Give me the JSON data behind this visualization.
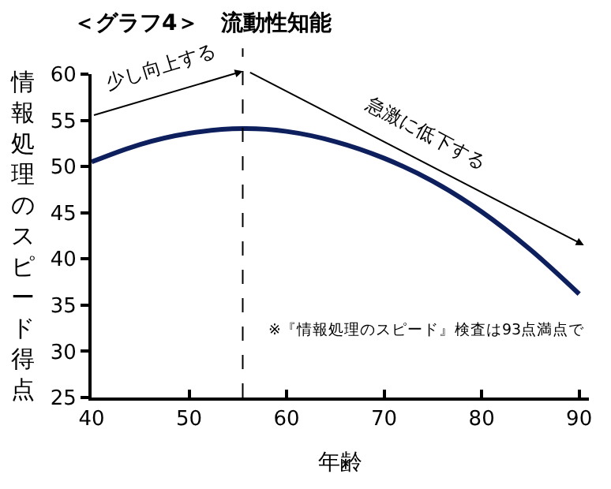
{
  "chart_data": {
    "type": "line",
    "title": "＜グラフ4＞　流動性知能",
    "xlabel": "年齢",
    "ylabel": "情報処理のスピード得点",
    "x": [
      40,
      45,
      50,
      55.5,
      60,
      65,
      70,
      75,
      80,
      85,
      90
    ],
    "series": [
      {
        "color": "#0d1f5c",
        "values": [
          50.5,
          52.4,
          53.6,
          54.1,
          53.8,
          52.7,
          50.9,
          48.4,
          45.1,
          41.0,
          36.2
        ]
      }
    ],
    "xlim": [
      40,
      91
    ],
    "ylim": [
      25,
      60
    ],
    "xticks": [
      40,
      50,
      60,
      70,
      80,
      90
    ],
    "yticks": [
      25,
      30,
      35,
      40,
      45,
      50,
      55,
      60
    ],
    "ref_lines": [
      {
        "axis": "x",
        "value": 55.5,
        "color": "#000000",
        "line_style": "dashed"
      }
    ],
    "annotations": [
      "少し向上する",
      "急激に低下する",
      "※『情報処理のスピード』検査は93点満点で"
    ],
    "marker": "none",
    "line_style": "solid"
  }
}
